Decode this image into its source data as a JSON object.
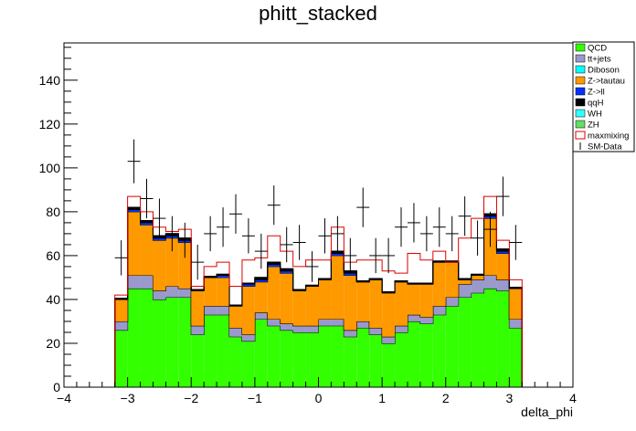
{
  "chart_data": {
    "type": "stacked-histogram",
    "title": "phitt_stacked",
    "xlabel": "delta_phi",
    "ylabel": "",
    "xlim": [
      -4,
      4
    ],
    "ylim": [
      0,
      157
    ],
    "x_ticks": [
      -4,
      -3,
      -2,
      -1,
      0,
      1,
      2,
      3,
      4
    ],
    "y_ticks": [
      0,
      20,
      40,
      60,
      80,
      100,
      120,
      140
    ],
    "legend_position": "top-right",
    "bin_edges": [
      -3.2,
      -3.0,
      -2.8,
      -2.6,
      -2.4,
      -2.2,
      -2.0,
      -1.8,
      -1.6,
      -1.4,
      -1.2,
      -1.0,
      -0.8,
      -0.6,
      -0.4,
      -0.2,
      0.0,
      0.2,
      0.4,
      0.6,
      0.8,
      1.0,
      1.2,
      1.4,
      1.6,
      1.8,
      2.0,
      2.2,
      2.4,
      2.6,
      2.8,
      3.0,
      3.2
    ],
    "stack": [
      {
        "name": "QCD",
        "color": "#33ff00",
        "values": [
          26,
          45,
          45,
          40,
          41,
          41,
          24,
          33,
          33,
          23,
          21,
          31,
          28,
          26,
          25,
          25,
          28,
          28,
          23,
          27,
          24,
          20,
          25,
          30,
          29,
          33,
          37,
          41,
          43,
          45,
          44,
          27
        ]
      },
      {
        "name": "tt+jets",
        "color": "#9999cc",
        "values": [
          4,
          6,
          6,
          4,
          5,
          4,
          4,
          4,
          4,
          4,
          3,
          3,
          3,
          3,
          3,
          3,
          3,
          3,
          3,
          3,
          3,
          3,
          3,
          3,
          3,
          4,
          4,
          6,
          6,
          6,
          5,
          4
        ]
      },
      {
        "name": "Diboson",
        "color": "#00ffff",
        "values": [
          0,
          0,
          0,
          0,
          0,
          0,
          0,
          0,
          0,
          0,
          0,
          0,
          0,
          0,
          0,
          0,
          0,
          0,
          0,
          0,
          0,
          0,
          0,
          0,
          0,
          0,
          0,
          0,
          0,
          0,
          0,
          0
        ]
      },
      {
        "name": "Z->tautau",
        "color": "#ff9900",
        "values": [
          10,
          29,
          23,
          23,
          22,
          21,
          16,
          13,
          13,
          10,
          22,
          14,
          24,
          23,
          16,
          18,
          18,
          29,
          25,
          18,
          22,
          20,
          20,
          14,
          15,
          20,
          16,
          2,
          2,
          26,
          12,
          14
        ]
      },
      {
        "name": "Z->ll",
        "color": "#0033ff",
        "values": [
          0,
          1,
          1,
          1,
          1,
          1,
          0,
          0,
          1,
          0,
          1,
          1,
          1,
          1,
          0,
          0,
          0,
          1,
          1,
          0,
          0,
          0,
          0,
          0,
          0,
          0,
          0,
          0,
          0,
          1,
          1,
          0
        ]
      },
      {
        "name": "qqH",
        "color": "#000000",
        "values": [
          0.5,
          1,
          1,
          1,
          1,
          1,
          0.5,
          0.5,
          0.5,
          0.5,
          0.5,
          1,
          1,
          1,
          0.5,
          0.5,
          0.5,
          1,
          1,
          0.5,
          0.5,
          0.5,
          0.5,
          0.5,
          0.5,
          0.5,
          0.5,
          0.5,
          0.5,
          1,
          1,
          0.5
        ]
      },
      {
        "name": "WH",
        "color": "#33ffff",
        "values": [
          0,
          0,
          0,
          0,
          0,
          0,
          0,
          0,
          0,
          0,
          0,
          0,
          0,
          0,
          0,
          0,
          0,
          0,
          0,
          0,
          0,
          0,
          0,
          0,
          0,
          0,
          0,
          0,
          0,
          0,
          0,
          0
        ]
      },
      {
        "name": "ZH",
        "color": "#66dd66",
        "values": [
          0,
          0,
          0,
          0,
          0,
          0,
          0,
          0,
          0,
          0,
          0,
          0,
          0,
          0,
          0,
          0,
          0,
          0,
          0,
          0,
          0,
          0,
          0,
          0,
          0,
          0,
          0,
          0,
          0,
          0,
          0,
          0
        ]
      }
    ],
    "overlay": {
      "name": "maxmixing",
      "color": "#dd0000",
      "values": [
        42,
        87,
        80,
        73,
        71,
        72,
        46,
        55,
        57,
        46,
        58,
        59,
        69,
        62,
        55,
        58,
        58,
        73,
        57,
        58,
        58,
        53,
        52,
        61,
        58,
        62,
        57,
        68,
        77,
        87,
        67,
        49
      ]
    },
    "data": {
      "name": "SM-Data",
      "values": [
        59,
        103,
        86,
        77,
        70,
        67,
        57,
        70,
        73,
        79,
        69,
        62,
        83,
        65,
        66,
        55,
        69,
        70,
        60,
        82,
        60,
        60,
        73,
        75,
        70,
        73,
        70,
        78,
        68,
        72,
        87,
        66
      ],
      "errors": [
        8,
        10,
        9,
        9,
        8,
        8,
        8,
        8,
        9,
        9,
        8,
        8,
        9,
        8,
        8,
        7,
        8,
        8,
        8,
        9,
        8,
        8,
        9,
        9,
        8,
        9,
        8,
        9,
        8,
        8,
        9,
        8
      ]
    }
  }
}
